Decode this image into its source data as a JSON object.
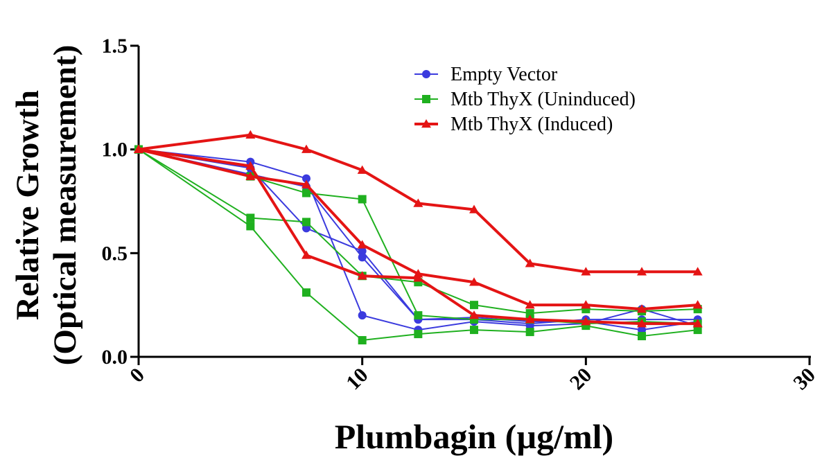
{
  "chart_data": {
    "type": "line",
    "xlabel": "Plumbagin (µg/ml)",
    "ylabel_line1": "Relative Growth",
    "ylabel_line2": "(Optical measurement)",
    "xlim": [
      0,
      30
    ],
    "ylim": [
      0,
      1.5
    ],
    "xticks": [
      0,
      10,
      20,
      30
    ],
    "yticks": [
      0.0,
      0.5,
      1.0,
      1.5
    ],
    "ytick_labels": [
      "0.0",
      "0.5",
      "1.0",
      "1.5"
    ],
    "xtick_labels": [
      "0",
      "10",
      "20",
      "30"
    ],
    "grid": false,
    "legend_position": "top-center",
    "series": [
      {
        "name": "Empty Vector",
        "color": "#3b3bde",
        "marker": "circle",
        "line_width": 2,
        "replicates": [
          {
            "x": [
              0,
              5,
              7.5,
              10,
              12.5,
              15,
              17.5,
              20,
              22.5,
              25
            ],
            "y": [
              1.0,
              0.94,
              0.86,
              0.2,
              0.13,
              0.17,
              0.15,
              0.16,
              0.23,
              0.15
            ]
          },
          {
            "x": [
              0,
              5,
              7.5,
              10,
              12.5,
              15,
              17.5,
              20,
              22.5,
              25
            ],
            "y": [
              1.0,
              0.91,
              0.62,
              0.51,
              0.18,
              0.19,
              0.17,
              0.17,
              0.13,
              0.17
            ]
          },
          {
            "x": [
              0,
              5,
              7.5,
              10,
              12.5,
              15,
              17.5,
              20,
              22.5,
              25
            ],
            "y": [
              1.0,
              0.88,
              0.82,
              0.48,
              0.18,
              0.18,
              0.16,
              0.18,
              0.18,
              0.18
            ]
          }
        ]
      },
      {
        "name": "Mtb ThyX (Uninduced)",
        "color": "#1fb01f",
        "marker": "square",
        "line_width": 2,
        "replicates": [
          {
            "x": [
              0,
              5,
              7.5,
              10,
              12.5,
              15,
              17.5,
              20,
              22.5,
              25
            ],
            "y": [
              1.0,
              0.67,
              0.65,
              0.39,
              0.36,
              0.25,
              0.21,
              0.23,
              0.22,
              0.23
            ]
          },
          {
            "x": [
              0,
              5,
              7.5,
              10,
              12.5,
              15,
              17.5,
              20,
              22.5,
              25
            ],
            "y": [
              1.0,
              0.63,
              0.31,
              0.08,
              0.11,
              0.13,
              0.12,
              0.15,
              0.1,
              0.13
            ]
          },
          {
            "x": [
              0,
              5,
              7.5,
              10,
              12.5,
              15,
              17.5,
              20,
              22.5,
              25
            ],
            "y": [
              1.0,
              0.87,
              0.79,
              0.76,
              0.2,
              0.18,
              0.18,
              0.16,
              0.17,
              0.16
            ]
          }
        ]
      },
      {
        "name": "Mtb ThyX (Induced)",
        "color": "#e41414",
        "marker": "triangle",
        "line_width": 4,
        "replicates": [
          {
            "x": [
              0,
              5,
              7.5,
              10,
              12.5,
              15,
              17.5,
              20,
              22.5,
              25
            ],
            "y": [
              1.0,
              1.07,
              1.0,
              0.9,
              0.74,
              0.71,
              0.45,
              0.41,
              0.41,
              0.41
            ]
          },
          {
            "x": [
              0,
              5,
              7.5,
              10,
              12.5,
              15,
              17.5,
              20,
              22.5,
              25
            ],
            "y": [
              1.0,
              0.92,
              0.49,
              0.39,
              0.38,
              0.2,
              0.18,
              0.17,
              0.16,
              0.16
            ]
          },
          {
            "x": [
              0,
              5,
              7.5,
              10,
              12.5,
              15,
              17.5,
              20,
              22.5,
              25
            ],
            "y": [
              1.0,
              0.87,
              0.83,
              0.54,
              0.4,
              0.36,
              0.25,
              0.25,
              0.23,
              0.25
            ]
          }
        ]
      }
    ]
  }
}
